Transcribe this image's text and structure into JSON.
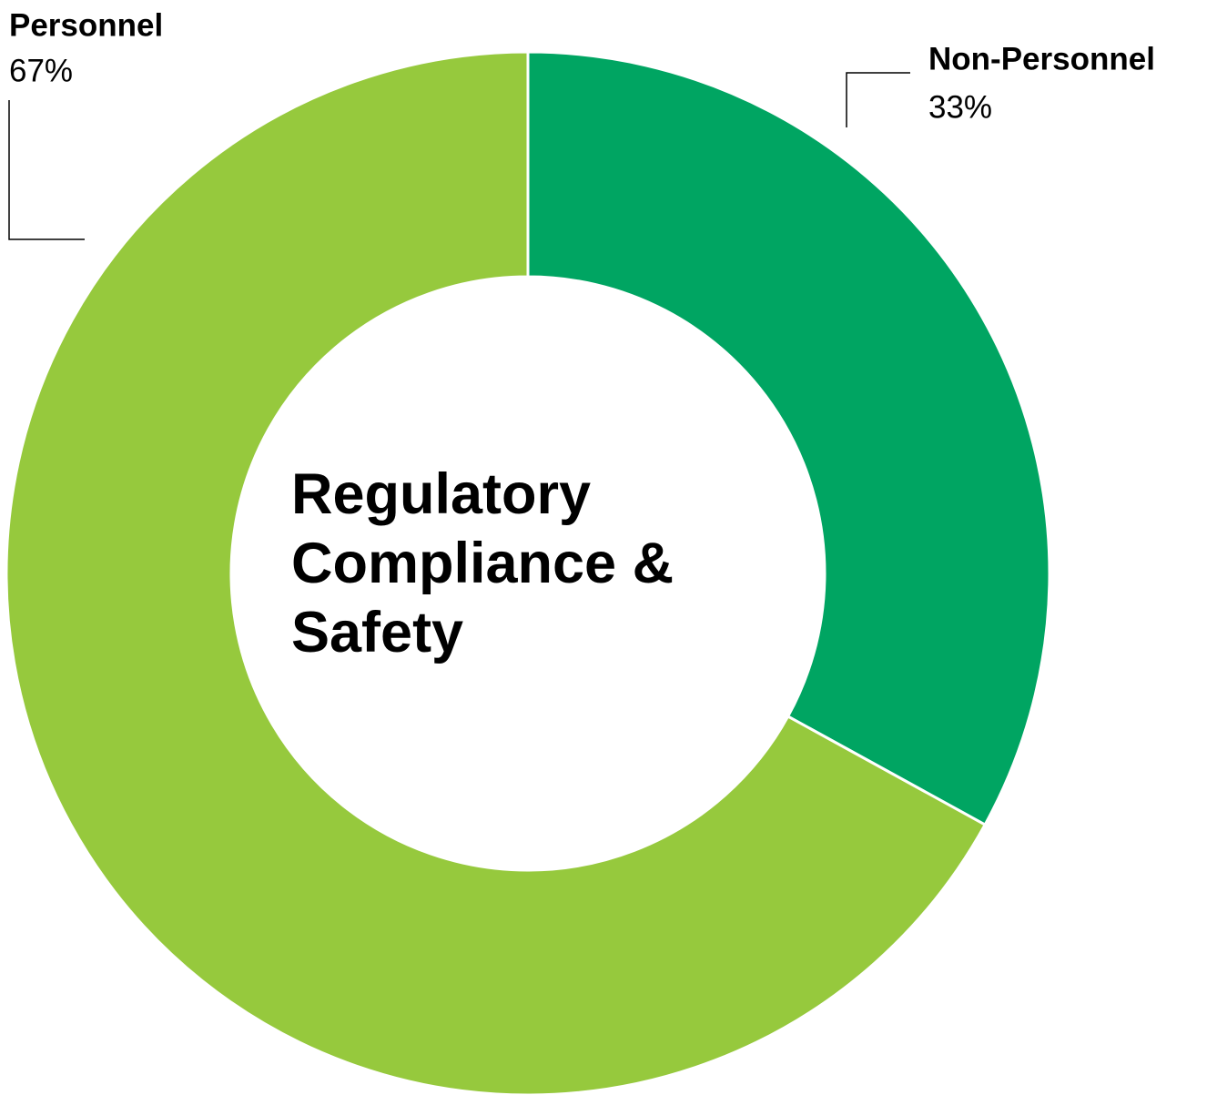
{
  "chart_data": {
    "type": "donut",
    "title": "Regulatory Compliance & Safety",
    "categories": [
      "Non-Personnel",
      "Personnel"
    ],
    "values": [
      33,
      67
    ],
    "value_labels": [
      "33%",
      "67%"
    ],
    "colors": [
      "#00a562",
      "#96c93d"
    ]
  }
}
